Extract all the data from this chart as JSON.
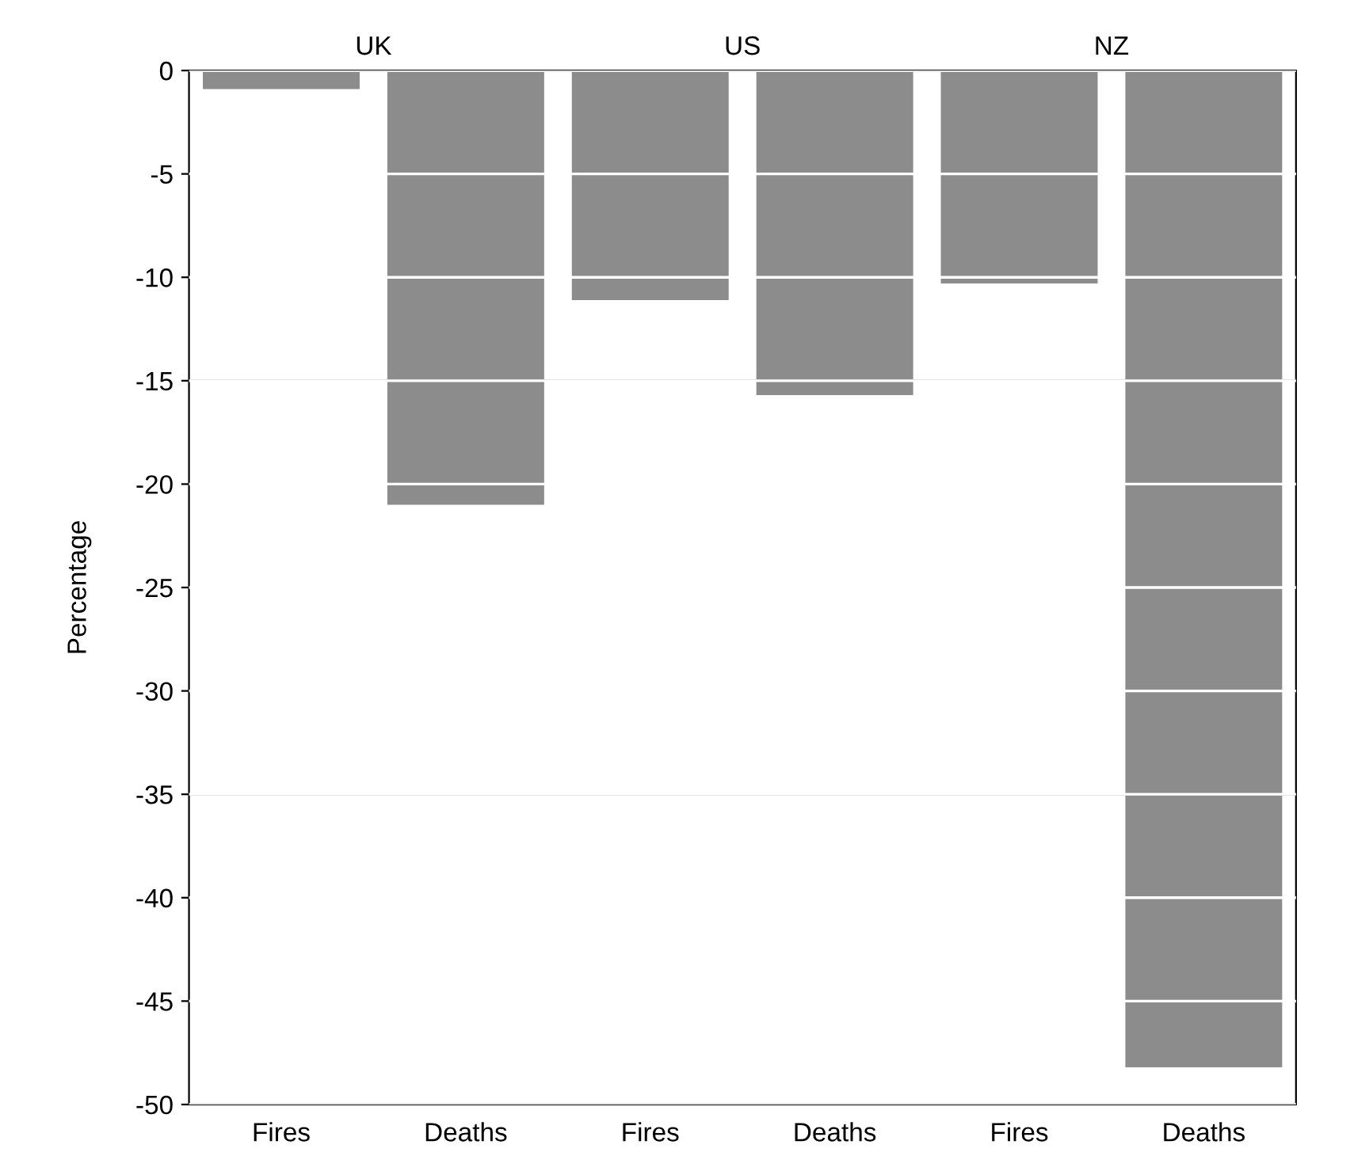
{
  "chart_data": {
    "type": "bar",
    "ylabel": "Percentage",
    "categories": [
      "Fires",
      "Deaths",
      "Fires",
      "Deaths",
      "Fires",
      "Deaths"
    ],
    "values": [
      -0.9,
      -21.0,
      -11.1,
      -15.7,
      -10.3,
      -48.2
    ],
    "color": "#8c8c8c",
    "annotations": [
      "UK",
      "US",
      "NZ"
    ],
    "ylim": [
      -50,
      0
    ],
    "yticks": [
      0,
      -5,
      -10,
      -15,
      -20,
      -25,
      -30,
      -35,
      -40,
      -45,
      -50
    ],
    "grid": "y",
    "legend": false
  }
}
